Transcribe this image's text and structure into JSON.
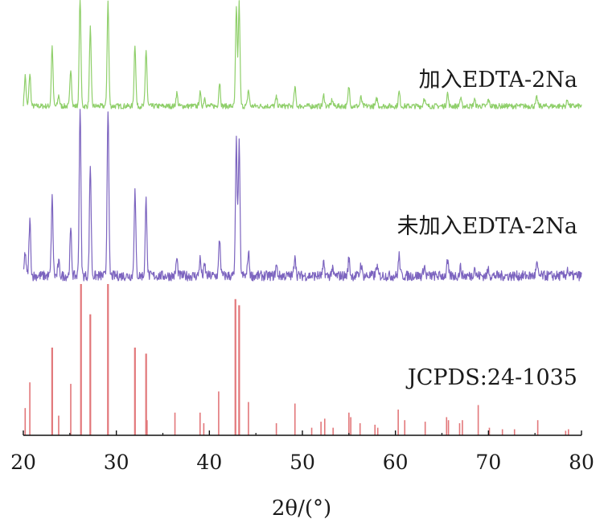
{
  "chart_data": {
    "type": "line",
    "xlabel": "2θ/(°)",
    "ylabel": "",
    "xlim": [
      20,
      80
    ],
    "x_ticks": [
      "20",
      "30",
      "40",
      "50",
      "60",
      "70",
      "80"
    ],
    "grid": false,
    "legend": "inline labels right",
    "series": [
      {
        "name": "加入EDTA-2Na",
        "color": "#8fcf6a",
        "baseline": 0.06,
        "noise": 0.025,
        "peaks": [
          [
            20.2,
            0.28
          ],
          [
            20.7,
            0.3
          ],
          [
            23.1,
            0.55
          ],
          [
            23.8,
            0.1
          ],
          [
            25.1,
            0.35
          ],
          [
            26.1,
            1.0
          ],
          [
            27.2,
            0.72
          ],
          [
            29.1,
            0.96
          ],
          [
            32.0,
            0.57
          ],
          [
            33.2,
            0.52
          ],
          [
            36.5,
            0.12
          ],
          [
            39.0,
            0.12
          ],
          [
            39.5,
            0.08
          ],
          [
            41.1,
            0.22
          ],
          [
            42.9,
            0.9
          ],
          [
            43.2,
            0.95
          ],
          [
            44.2,
            0.15
          ],
          [
            47.2,
            0.08
          ],
          [
            49.2,
            0.17
          ],
          [
            52.3,
            0.1
          ],
          [
            53.2,
            0.06
          ],
          [
            55.0,
            0.18
          ],
          [
            56.3,
            0.08
          ],
          [
            58.0,
            0.07
          ],
          [
            60.4,
            0.13
          ],
          [
            63.1,
            0.08
          ],
          [
            65.6,
            0.12
          ],
          [
            67.0,
            0.07
          ],
          [
            68.5,
            0.06
          ],
          [
            70.0,
            0.06
          ],
          [
            75.2,
            0.08
          ],
          [
            78.5,
            0.06
          ]
        ]
      },
      {
        "name": "未加入EDTA-2Na",
        "color": "#7c64bf",
        "baseline": 0.02,
        "noise": 0.03,
        "peaks": [
          [
            20.2,
            0.14
          ],
          [
            20.7,
            0.33
          ],
          [
            23.1,
            0.46
          ],
          [
            23.8,
            0.08
          ],
          [
            25.1,
            0.27
          ],
          [
            26.1,
            1.0
          ],
          [
            27.2,
            0.66
          ],
          [
            29.1,
            1.0
          ],
          [
            32.0,
            0.5
          ],
          [
            33.2,
            0.45
          ],
          [
            36.5,
            0.1
          ],
          [
            39.0,
            0.1
          ],
          [
            39.5,
            0.06
          ],
          [
            41.1,
            0.22
          ],
          [
            42.9,
            0.8
          ],
          [
            43.2,
            0.78
          ],
          [
            44.2,
            0.14
          ],
          [
            47.2,
            0.06
          ],
          [
            49.2,
            0.13
          ],
          [
            52.3,
            0.07
          ],
          [
            53.2,
            0.04
          ],
          [
            55.0,
            0.1
          ],
          [
            56.3,
            0.07
          ],
          [
            58.0,
            0.06
          ],
          [
            60.4,
            0.12
          ],
          [
            63.1,
            0.06
          ],
          [
            65.6,
            0.08
          ],
          [
            67.0,
            0.05
          ],
          [
            68.5,
            0.05
          ],
          [
            70.0,
            0.04
          ],
          [
            75.2,
            0.07
          ],
          [
            78.5,
            0.04
          ]
        ]
      },
      {
        "name": "JCPDS:24-1035",
        "type": "stick",
        "color": "#e2777a",
        "sticks": [
          [
            20.2,
            0.18
          ],
          [
            20.7,
            0.35
          ],
          [
            23.1,
            0.58
          ],
          [
            23.8,
            0.13
          ],
          [
            25.1,
            0.34
          ],
          [
            26.2,
            1.0
          ],
          [
            27.2,
            0.8
          ],
          [
            29.1,
            1.0
          ],
          [
            32.0,
            0.58
          ],
          [
            33.2,
            0.54
          ],
          [
            33.3,
            0.1
          ],
          [
            36.3,
            0.15
          ],
          [
            39.0,
            0.15
          ],
          [
            39.4,
            0.08
          ],
          [
            41.0,
            0.29
          ],
          [
            42.8,
            0.9
          ],
          [
            43.2,
            0.86
          ],
          [
            44.2,
            0.22
          ],
          [
            47.2,
            0.08
          ],
          [
            49.2,
            0.21
          ],
          [
            51.0,
            0.05
          ],
          [
            52.0,
            0.09
          ],
          [
            52.4,
            0.11
          ],
          [
            53.3,
            0.05
          ],
          [
            55.0,
            0.15
          ],
          [
            55.2,
            0.12
          ],
          [
            56.2,
            0.08
          ],
          [
            57.8,
            0.07
          ],
          [
            58.1,
            0.05
          ],
          [
            60.3,
            0.17
          ],
          [
            61.0,
            0.1
          ],
          [
            63.2,
            0.09
          ],
          [
            65.5,
            0.12
          ],
          [
            65.7,
            0.1
          ],
          [
            66.9,
            0.08
          ],
          [
            67.2,
            0.1
          ],
          [
            68.9,
            0.2
          ],
          [
            70.1,
            0.05
          ],
          [
            71.5,
            0.04
          ],
          [
            72.8,
            0.04
          ],
          [
            75.3,
            0.1
          ],
          [
            78.3,
            0.03
          ],
          [
            78.6,
            0.04
          ]
        ]
      }
    ]
  }
}
